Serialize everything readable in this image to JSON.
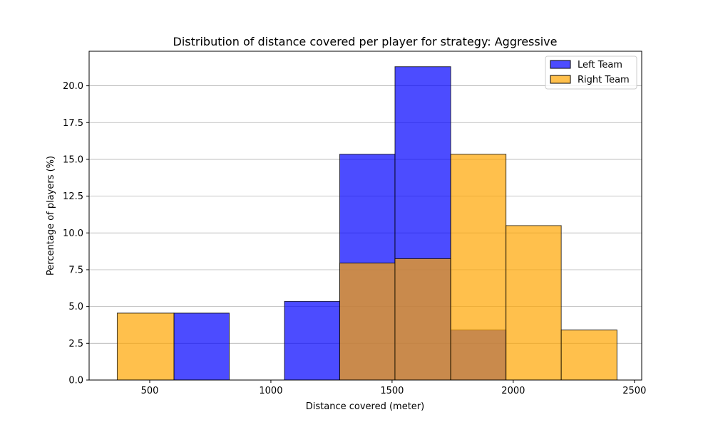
{
  "chart_data": {
    "type": "bar",
    "title": "Distribution of distance covered per player for strategy: Aggressive",
    "xlabel": "Distance covered (meter)",
    "ylabel": "Percentage of players (%)",
    "xlim": [
      250,
      2530
    ],
    "ylim": [
      0,
      22.35
    ],
    "xticks": [
      500,
      1000,
      1500,
      2000,
      2500
    ],
    "yticks": [
      0.0,
      2.5,
      5.0,
      7.5,
      10.0,
      12.5,
      15.0,
      17.5,
      20.0
    ],
    "xtick_labels": [
      "500",
      "1000",
      "1500",
      "2000",
      "2500"
    ],
    "ytick_labels": [
      "0.0",
      "2.5",
      "5.0",
      "7.5",
      "10.0",
      "12.5",
      "15.0",
      "17.5",
      "20.0"
    ],
    "grid": "y",
    "legend_position": "top-right",
    "series": [
      {
        "name": "Left Team",
        "color": "#0000ff",
        "alpha": 0.7,
        "bins": [
          {
            "x0": 600,
            "x1": 828,
            "value": 4.55
          },
          {
            "x0": 828,
            "x1": 1056,
            "value": 0
          },
          {
            "x0": 1056,
            "x1": 1284,
            "value": 5.35
          },
          {
            "x0": 1284,
            "x1": 1512,
            "value": 15.35
          },
          {
            "x0": 1512,
            "x1": 1742,
            "value": 21.3
          },
          {
            "x0": 1742,
            "x1": 1970,
            "value": 3.4
          }
        ]
      },
      {
        "name": "Right Team",
        "color": "#ffa500",
        "alpha": 0.7,
        "bins": [
          {
            "x0": 366,
            "x1": 600,
            "value": 4.55
          },
          {
            "x0": 600,
            "x1": 828,
            "value": 0
          },
          {
            "x0": 828,
            "x1": 1056,
            "value": 0
          },
          {
            "x0": 1056,
            "x1": 1284,
            "value": 0
          },
          {
            "x0": 1284,
            "x1": 1512,
            "value": 7.95
          },
          {
            "x0": 1512,
            "x1": 1742,
            "value": 8.25
          },
          {
            "x0": 1742,
            "x1": 1970,
            "value": 15.35
          },
          {
            "x0": 1970,
            "x1": 2198,
            "value": 10.5
          },
          {
            "x0": 2198,
            "x1": 2428,
            "value": 3.4
          }
        ]
      }
    ]
  }
}
